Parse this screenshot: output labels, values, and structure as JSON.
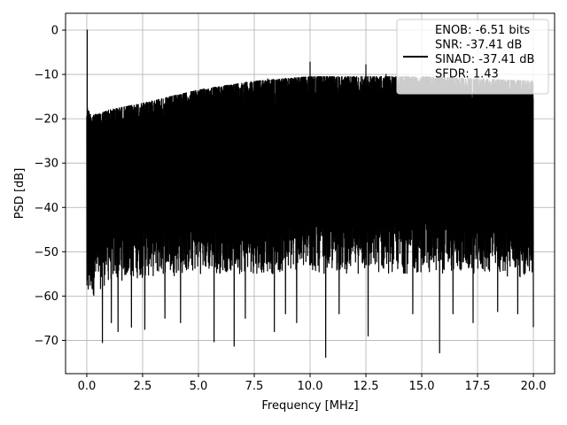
{
  "chart_data": {
    "type": "line",
    "title": "",
    "xlabel": "Frequency [MHz]",
    "ylabel": "PSD [dB]",
    "xlim": [
      -0.95,
      20.95
    ],
    "ylim": [
      -77.5,
      3.8
    ],
    "grid": true,
    "xticks": [
      0.0,
      2.5,
      5.0,
      7.5,
      10.0,
      12.5,
      15.0,
      17.5,
      20.0
    ],
    "xtick_labels": [
      "0.0",
      "2.5",
      "5.0",
      "7.5",
      "10.0",
      "12.5",
      "15.0",
      "17.5",
      "20.0"
    ],
    "yticks": [
      0,
      -10,
      -20,
      -30,
      -40,
      -50,
      -60,
      -70
    ],
    "ytick_labels": [
      "0",
      "−10",
      "−20",
      "−30",
      "−40",
      "−50",
      "−60",
      "−70"
    ],
    "legend": {
      "placement": "top-right",
      "entries": [
        "ENOB: -6.51 bits",
        "SNR: -37.41 dB",
        "SINAD: -37.41 dB",
        "SFDR: 1.43"
      ]
    },
    "series": [
      {
        "color": "#000000",
        "envelope": {
          "x": [
            0.0,
            0.15,
            0.5,
            1.0,
            2.5,
            5.0,
            7.5,
            10.0,
            12.5,
            15.0,
            17.5,
            20.0
          ],
          "upper": [
            -17,
            -19,
            -19,
            -18,
            -16.5,
            -13.5,
            -11.5,
            -10.5,
            -10.5,
            -10.5,
            -11,
            -11.5
          ],
          "floor": [
            -60,
            -58,
            -56,
            -54,
            -53,
            -52,
            -52,
            -52,
            -52,
            -52,
            -52,
            -53
          ]
        },
        "peaks": [
          {
            "x": 0.02,
            "y": 0
          },
          {
            "x": 3.15,
            "y": -17
          },
          {
            "x": 8.1,
            "y": -11
          },
          {
            "x": 10.0,
            "y": -7.2
          },
          {
            "x": 12.5,
            "y": -7.8
          },
          {
            "x": 13.4,
            "y": -10
          },
          {
            "x": 15.6,
            "y": -11
          }
        ],
        "dips": [
          {
            "x": 0.7,
            "y": -70.5
          },
          {
            "x": 1.1,
            "y": -66
          },
          {
            "x": 1.4,
            "y": -68
          },
          {
            "x": 2.0,
            "y": -67
          },
          {
            "x": 2.6,
            "y": -67.5
          },
          {
            "x": 3.5,
            "y": -65
          },
          {
            "x": 4.2,
            "y": -66
          },
          {
            "x": 5.7,
            "y": -70.3
          },
          {
            "x": 6.6,
            "y": -71.3
          },
          {
            "x": 7.1,
            "y": -65
          },
          {
            "x": 8.4,
            "y": -68
          },
          {
            "x": 8.9,
            "y": -64
          },
          {
            "x": 9.4,
            "y": -66
          },
          {
            "x": 10.7,
            "y": -73.8
          },
          {
            "x": 11.3,
            "y": -64
          },
          {
            "x": 12.6,
            "y": -69
          },
          {
            "x": 13.4,
            "y": -69.2
          },
          {
            "x": 14.6,
            "y": -64
          },
          {
            "x": 15.8,
            "y": -72.8
          },
          {
            "x": 16.4,
            "y": -64
          },
          {
            "x": 17.3,
            "y": -66
          },
          {
            "x": 18.4,
            "y": -63.5
          },
          {
            "x": 19.3,
            "y": -64
          },
          {
            "x": 20.0,
            "y": -67
          }
        ]
      }
    ]
  }
}
